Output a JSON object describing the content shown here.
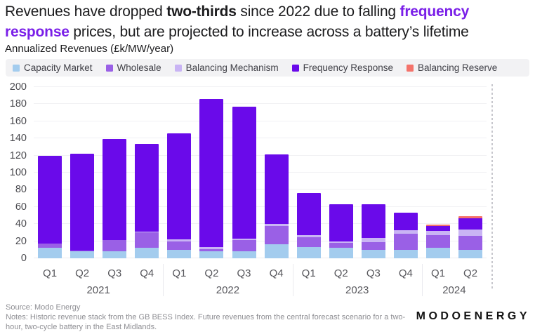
{
  "header": {
    "title_parts": [
      {
        "text": "Revenues have dropped ",
        "style": "normal"
      },
      {
        "text": "two-thirds",
        "style": "bold"
      },
      {
        "text": " since 2022 due to falling ",
        "style": "normal"
      },
      {
        "text": "frequency response",
        "style": "bold-accent"
      },
      {
        "text": " prices, but are projected to increase across a battery’s lifetime",
        "style": "normal"
      }
    ],
    "accent_color": "#7A1FE8",
    "subtitle": "Annualized Revenues (£k/MW/year)"
  },
  "chart_data": {
    "type": "bar",
    "stacked": true,
    "title": "Annualized Revenues (£k/MW/year)",
    "ylabel": "£k/MW/year",
    "ylim": [
      0,
      200
    ],
    "ytick_step": 20,
    "grid": "horizontal",
    "legend_position": "top",
    "categories": [
      "Q1",
      "Q2",
      "Q3",
      "Q4",
      "Q1",
      "Q2",
      "Q3",
      "Q4",
      "Q1",
      "Q2",
      "Q3",
      "Q4",
      "Q1",
      "Q2"
    ],
    "year_groups": [
      {
        "label": "2021",
        "count": 4
      },
      {
        "label": "2022",
        "count": 4
      },
      {
        "label": "2023",
        "count": 4
      },
      {
        "label": "2024",
        "count": 2
      }
    ],
    "series": [
      {
        "name": "Capacity Market",
        "color": "#A3CCEE",
        "values": [
          12,
          8,
          8,
          12,
          10,
          8,
          8,
          16,
          13,
          12,
          10,
          10,
          12,
          10
        ]
      },
      {
        "name": "Wholesale",
        "color": "#9A60E6",
        "values": [
          5,
          1,
          13,
          18,
          10,
          3,
          13,
          22,
          12,
          6,
          9,
          19,
          15,
          16
        ]
      },
      {
        "name": "Balancing Mechanism",
        "color": "#C9B4F4",
        "values": [
          0,
          0,
          0,
          1,
          2,
          2,
          2,
          2,
          2,
          2,
          5,
          4,
          5,
          8
        ]
      },
      {
        "name": "Frequency Response",
        "color": "#6A0AEA",
        "values": [
          103,
          113,
          118,
          103,
          124,
          173,
          154,
          81,
          49,
          43,
          39,
          20,
          6,
          13
        ]
      },
      {
        "name": "Balancing Reserve",
        "color": "#F4736B",
        "values": [
          0,
          0,
          0,
          0,
          0,
          0,
          0,
          0,
          0,
          0,
          0,
          0,
          1,
          2
        ]
      }
    ],
    "totals": [
      120,
      122,
      139,
      134,
      146,
      186,
      177,
      121,
      76,
      63,
      63,
      53,
      39,
      49
    ],
    "forecast_divider_dashed_line": true
  },
  "footer": {
    "source": "Source: Modo Energy",
    "notes": "Notes: Historic revenue stack from the GB BESS Index. Future revenues from the central forecast scenario for a two-hour, two-cycle battery in the East Midlands.",
    "logo": "MODOENERGY"
  }
}
